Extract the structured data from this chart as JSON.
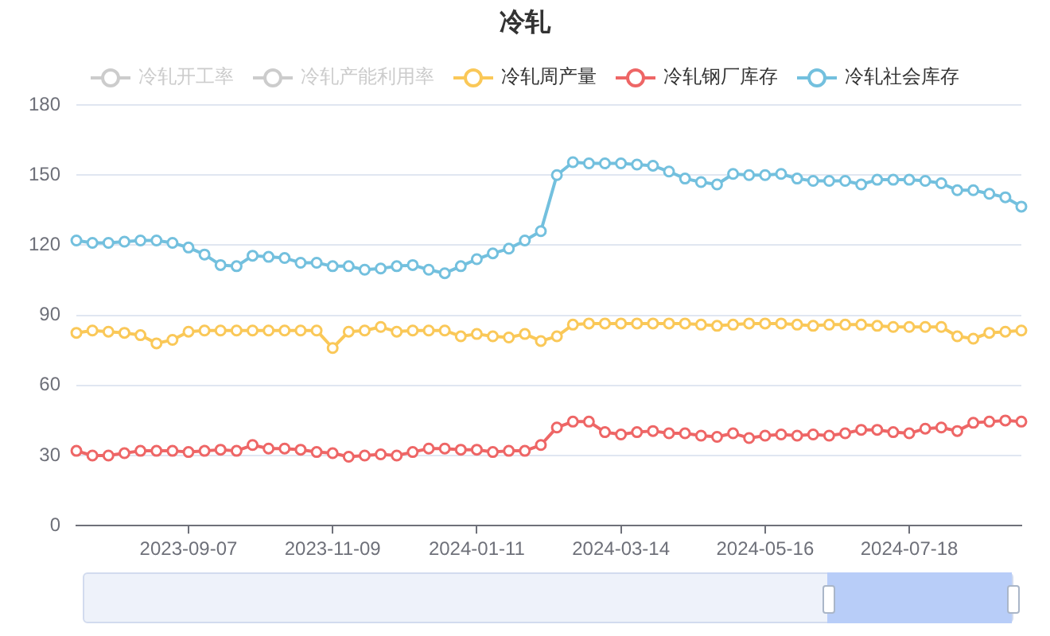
{
  "chart_data": {
    "type": "line",
    "title": "冷轧",
    "categories": [
      null,
      null,
      null,
      null,
      null,
      null,
      null,
      "2023-09-07",
      null,
      null,
      null,
      null,
      null,
      null,
      null,
      null,
      "2023-11-09",
      null,
      null,
      null,
      null,
      null,
      null,
      null,
      null,
      "2024-01-11",
      null,
      null,
      null,
      null,
      null,
      null,
      null,
      null,
      "2024-03-14",
      null,
      null,
      null,
      null,
      null,
      null,
      null,
      null,
      "2024-05-16",
      null,
      null,
      null,
      null,
      null,
      null,
      null,
      null,
      "2024-07-18",
      null,
      null,
      null,
      null,
      null,
      null,
      null
    ],
    "series": [
      {
        "name": "冷轧开工率",
        "color": "#cccccc",
        "values": [
          null,
          null,
          null,
          null,
          null,
          null,
          null,
          null,
          null,
          null,
          null,
          null,
          null,
          null,
          null,
          null,
          null,
          null,
          null,
          null,
          null,
          null,
          null,
          null,
          null,
          null,
          null,
          null,
          null,
          null,
          null,
          null,
          null,
          null,
          null,
          null,
          null,
          null,
          null,
          null,
          null,
          null,
          null,
          null,
          null,
          null,
          null,
          null,
          null,
          null,
          null,
          null,
          null,
          null,
          null,
          null,
          null,
          null,
          null,
          null
        ]
      },
      {
        "name": "冷轧产能利用率",
        "color": "#cccccc",
        "values": [
          null,
          null,
          null,
          null,
          null,
          null,
          null,
          null,
          null,
          null,
          null,
          null,
          null,
          null,
          null,
          null,
          null,
          null,
          null,
          null,
          null,
          null,
          null,
          null,
          null,
          null,
          null,
          null,
          null,
          null,
          null,
          null,
          null,
          null,
          null,
          null,
          null,
          null,
          null,
          null,
          null,
          null,
          null,
          null,
          null,
          null,
          null,
          null,
          null,
          null,
          null,
          null,
          null,
          null,
          null,
          null,
          null,
          null,
          null,
          null
        ]
      },
      {
        "name": "冷轧周产量",
        "color": "#fac858",
        "values": [
          82.5,
          83.5,
          83,
          82.5,
          81.5,
          78,
          79.5,
          83,
          83.5,
          83.5,
          83.5,
          83.5,
          83.5,
          83.5,
          83.5,
          83.5,
          76,
          83,
          83.5,
          85,
          83,
          83.5,
          83.5,
          83.5,
          81,
          82,
          81,
          80.5,
          82,
          79,
          81,
          86,
          86.5,
          86.5,
          86.5,
          86.5,
          86.5,
          86.5,
          86.5,
          86,
          85.5,
          86,
          86.5,
          86.5,
          86.5,
          86,
          85.5,
          86,
          86,
          86,
          85.5,
          85,
          85,
          85,
          85,
          81,
          80,
          82.5,
          83,
          83.5
        ]
      },
      {
        "name": "冷轧钢厂库存",
        "color": "#ee6666",
        "values": [
          32,
          30,
          30,
          31,
          32,
          32,
          32,
          31.5,
          32,
          32.5,
          32,
          34.5,
          33,
          33,
          32.5,
          31.5,
          31,
          29.5,
          30,
          30.5,
          30,
          31.5,
          33,
          33,
          32.5,
          32.5,
          31.5,
          32,
          32,
          34.5,
          42,
          44.5,
          44.5,
          40,
          39,
          40,
          40.5,
          39.5,
          39.5,
          38.5,
          38,
          39.5,
          37.5,
          38.5,
          39,
          38.5,
          39,
          38.5,
          39.5,
          41,
          41,
          40,
          39.5,
          41.5,
          42,
          40.5,
          44,
          44.5,
          45,
          44.5
        ]
      },
      {
        "name": "冷轧社会库存",
        "color": "#73c0de",
        "values": [
          122,
          121,
          121,
          121.5,
          122,
          122,
          121,
          119,
          116,
          111.5,
          111,
          115.5,
          115,
          114.5,
          112.5,
          112.5,
          111,
          111,
          109.5,
          110,
          111,
          111.5,
          109.5,
          108,
          111,
          114,
          116.5,
          118.5,
          122,
          126,
          150,
          155.5,
          155,
          155,
          155,
          154.5,
          154,
          151.5,
          148.5,
          147,
          146,
          150.5,
          150,
          150,
          150.5,
          148.5,
          147.5,
          147.5,
          147.5,
          146,
          148,
          148,
          148,
          147.5,
          146.5,
          143.5,
          143.5,
          142,
          140.5,
          136.5
        ]
      }
    ],
    "ylim": [
      0,
      180
    ],
    "yticks": [
      0,
      30,
      60,
      90,
      120,
      150,
      180
    ],
    "grid": "y",
    "legend": "top",
    "marker": "circle",
    "line_style": "solid"
  }
}
